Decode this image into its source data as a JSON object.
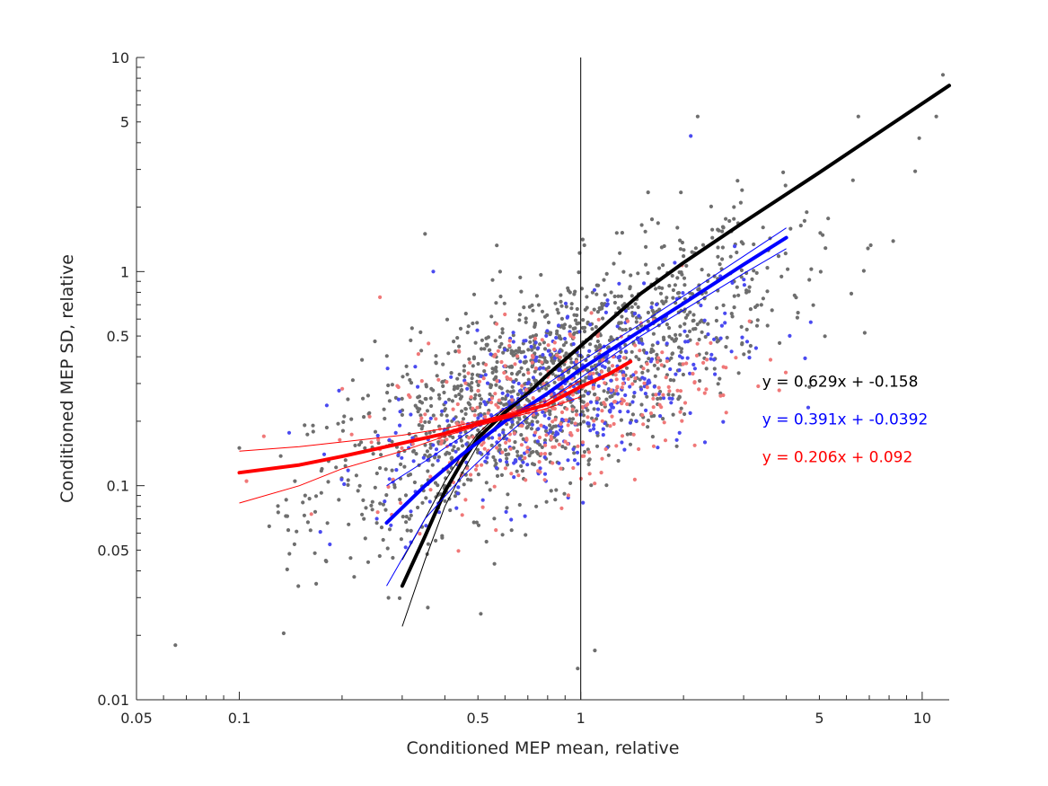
{
  "chart_data": {
    "type": "scatter",
    "scale": "log-log",
    "title": "",
    "xlabel": "Conditioned MEP mean, relative",
    "ylabel": "Conditioned MEP SD, relative",
    "xlim": [
      0.05,
      12
    ],
    "ylim": [
      0.01,
      10
    ],
    "xtick_labels": [
      {
        "value": 0.05,
        "label": "0.05"
      },
      {
        "value": 0.1,
        "label": "0.1"
      },
      {
        "value": 0.5,
        "label": "0.5"
      },
      {
        "value": 1,
        "label": "1"
      },
      {
        "value": 5,
        "label": "5"
      },
      {
        "value": 10,
        "label": "10"
      }
    ],
    "ytick_labels": [
      {
        "value": 0.01,
        "label": "0.01"
      },
      {
        "value": 0.05,
        "label": "0.05"
      },
      {
        "value": 0.1,
        "label": "0.1"
      },
      {
        "value": 0.5,
        "label": "0.5"
      },
      {
        "value": 1,
        "label": "1"
      },
      {
        "value": 5,
        "label": "5"
      },
      {
        "value": 10,
        "label": "10"
      }
    ],
    "reference_line": {
      "x": 1
    },
    "scatter_groups": [
      {
        "name": "gray",
        "color": "#6e6e6e",
        "count": 1400,
        "cx": 0.8,
        "sx": 0.55,
        "slope": 0.75,
        "intercept": -0.45,
        "sy": 0.42
      },
      {
        "name": "blue",
        "color": "#4a4af0",
        "count": 420,
        "cx": 0.85,
        "sx": 0.42,
        "slope": 0.55,
        "intercept": -0.55,
        "sy": 0.38
      },
      {
        "name": "salmon",
        "color": "#f07878",
        "count": 360,
        "cx": 0.8,
        "sx": 0.4,
        "slope": 0.35,
        "intercept": -0.6,
        "sy": 0.35
      }
    ],
    "scatter_outliers": [
      {
        "x": 0.065,
        "y": 0.018,
        "group": "gray"
      },
      {
        "x": 0.1,
        "y": 0.15,
        "group": "gray"
      },
      {
        "x": 0.13,
        "y": 0.075,
        "group": "gray"
      },
      {
        "x": 0.105,
        "y": 0.105,
        "group": "salmon"
      },
      {
        "x": 0.118,
        "y": 0.17,
        "group": "salmon"
      },
      {
        "x": 0.98,
        "y": 0.014,
        "group": "gray"
      },
      {
        "x": 1.1,
        "y": 0.017,
        "group": "gray"
      },
      {
        "x": 11.5,
        "y": 8.3,
        "group": "gray"
      },
      {
        "x": 11.0,
        "y": 5.3,
        "group": "gray"
      },
      {
        "x": 9.8,
        "y": 4.2,
        "group": "gray"
      },
      {
        "x": 6.5,
        "y": 5.3,
        "group": "gray"
      },
      {
        "x": 2.2,
        "y": 5.3,
        "group": "gray"
      },
      {
        "x": 2.1,
        "y": 4.3,
        "group": "blue"
      },
      {
        "x": 0.35,
        "y": 1.5,
        "group": "gray"
      },
      {
        "x": 0.37,
        "y": 1.0,
        "group": "blue"
      }
    ],
    "fits": [
      {
        "name": "black",
        "color": "#000000",
        "equation": "y = 0.629x + -0.158",
        "x": [
          0.3,
          0.35,
          0.4,
          0.45,
          0.5,
          0.6,
          0.7,
          0.8,
          1.0,
          1.5,
          2.0,
          3.0,
          5.0,
          8.0,
          12.0
        ],
        "y": [
          0.034,
          0.058,
          0.094,
          0.13,
          0.167,
          0.22,
          0.27,
          0.33,
          0.45,
          0.79,
          1.1,
          1.7,
          2.9,
          4.8,
          7.4
        ],
        "ci_lower": {
          "x": [
            0.3,
            0.35,
            0.4,
            0.45,
            0.5,
            0.6
          ],
          "y": [
            0.022,
            0.045,
            0.08,
            0.115,
            0.155,
            0.21
          ]
        },
        "ci_upper": {
          "x": [
            0.3,
            0.35,
            0.4,
            0.45,
            0.5,
            0.6
          ],
          "y": [
            0.045,
            0.07,
            0.105,
            0.14,
            0.175,
            0.23
          ]
        }
      },
      {
        "name": "blue",
        "color": "#0000ff",
        "equation": "y = 0.391x + -0.0392",
        "x": [
          0.27,
          0.35,
          0.45,
          0.6,
          0.8,
          1.0,
          1.5,
          2.0,
          3.0,
          4.0
        ],
        "y": [
          0.067,
          0.1,
          0.14,
          0.2,
          0.27,
          0.35,
          0.53,
          0.71,
          1.08,
          1.44
        ],
        "ci_lower": {
          "x": [
            0.27,
            0.35,
            0.45,
            0.6,
            0.8,
            1.0,
            1.5,
            2.0,
            3.0,
            4.0
          ],
          "y": [
            0.034,
            0.07,
            0.11,
            0.17,
            0.25,
            0.32,
            0.5,
            0.66,
            0.98,
            1.28
          ]
        },
        "ci_upper": {
          "x": [
            0.27,
            0.35,
            0.45,
            0.6,
            0.8,
            1.0,
            1.5,
            2.0,
            3.0,
            4.0
          ],
          "y": [
            0.1,
            0.13,
            0.17,
            0.23,
            0.3,
            0.38,
            0.57,
            0.77,
            1.18,
            1.6
          ]
        }
      },
      {
        "name": "red",
        "color": "#ff0000",
        "equation": "y = 0.206x + 0.092",
        "x": [
          0.1,
          0.15,
          0.2,
          0.3,
          0.4,
          0.5,
          0.6,
          0.8,
          1.0,
          1.2,
          1.4
        ],
        "y": [
          0.115,
          0.125,
          0.137,
          0.158,
          0.175,
          0.195,
          0.21,
          0.24,
          0.29,
          0.33,
          0.38
        ],
        "ci_lower": {
          "x": [
            0.1,
            0.15,
            0.2,
            0.3,
            0.4,
            0.5,
            0.6,
            0.8,
            1.0
          ],
          "y": [
            0.083,
            0.1,
            0.12,
            0.145,
            0.17,
            0.19,
            0.205,
            0.23,
            0.26
          ]
        },
        "ci_upper": {
          "x": [
            0.1,
            0.15,
            0.2,
            0.3,
            0.4,
            0.5,
            0.6,
            0.8,
            1.0
          ],
          "y": [
            0.145,
            0.152,
            0.16,
            0.172,
            0.185,
            0.2,
            0.215,
            0.25,
            0.31
          ]
        }
      }
    ],
    "annotations": [
      {
        "text": "y = 0.629x + -0.158",
        "color": "#000000",
        "x": 3.4,
        "y": 0.29
      },
      {
        "text": "y = 0.391x + -0.0392",
        "color": "#0000ff",
        "x": 3.4,
        "y": 0.193
      },
      {
        "text": "y = 0.206x + 0.092",
        "color": "#ff0000",
        "x": 3.4,
        "y": 0.129
      }
    ]
  }
}
